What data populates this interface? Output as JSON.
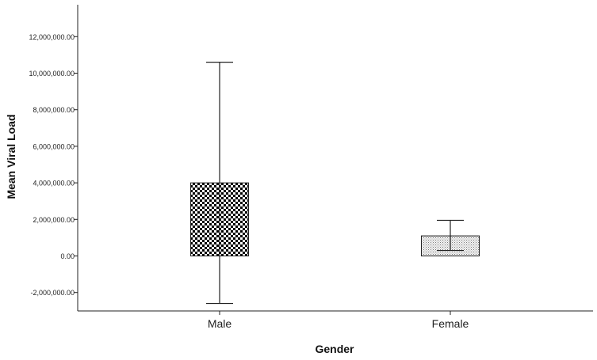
{
  "chart_data": {
    "type": "bar",
    "xlabel": "Gender",
    "ylabel": "Mean Viral Load",
    "categories": [
      "Male",
      "Female"
    ],
    "values": [
      4000000,
      1100000
    ],
    "error_low": [
      -2600000,
      300000
    ],
    "error_high": [
      10600000,
      1950000
    ],
    "ylim": [
      -2900000,
      13700000
    ],
    "yticks": [
      -2000000,
      0,
      2000000,
      4000000,
      6000000,
      8000000,
      10000000,
      12000000
    ],
    "ytick_labels": [
      "-2,000,000.00",
      "0.00",
      "2,000,000.00",
      "4,000,000.00",
      "6,000,000.00",
      "8,000,000.00",
      "10,000,000.00",
      "12,000,000.00"
    ],
    "bar_patterns": [
      "checkerboard",
      "fine-dots"
    ],
    "grid": false,
    "legend": "none"
  }
}
